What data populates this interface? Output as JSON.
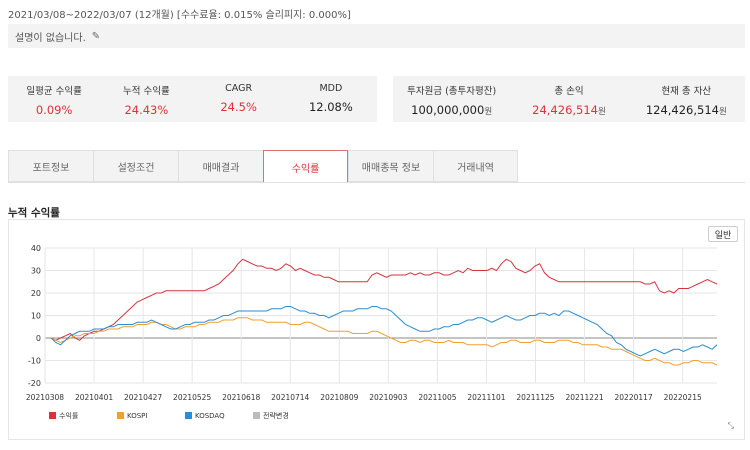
{
  "period_text": "2021/03/08~2022/03/07 (12개월) [수수료율: 0.015% 슬리피지: 0.000%]",
  "description": "설명이 없습니다.",
  "stats_left": [
    {
      "label": "일평균 수익률",
      "value": "0.09%",
      "color": "#e0303a"
    },
    {
      "label": "누적 수익률",
      "value": "24.43%",
      "color": "#e0303a"
    },
    {
      "label": "CAGR",
      "value": "24.5%",
      "color": "#e0303a"
    },
    {
      "label": "MDD",
      "value": "12.08%",
      "color": "#222222"
    }
  ],
  "stats_right": [
    {
      "label": "투자원금 (총투자평잔)",
      "value": "100,000,000",
      "unit": "원",
      "color": "#222222"
    },
    {
      "label": "총 손익",
      "value": "24,426,514",
      "unit": "원",
      "color": "#e0303a"
    },
    {
      "label": "현재 총 자산",
      "value": "124,426,514",
      "unit": "원",
      "color": "#222222"
    }
  ],
  "tabs": [
    {
      "label": "포트정보",
      "active": false
    },
    {
      "label": "설정조건",
      "active": false
    },
    {
      "label": "매매결과",
      "active": false
    },
    {
      "label": "수익률",
      "active": true
    },
    {
      "label": "매매종목 정보",
      "active": false
    },
    {
      "label": "거래내역",
      "active": false
    }
  ],
  "section_title": "누적 수익률",
  "chart_button": "일반",
  "chart_data": {
    "type": "line",
    "ylim": [
      -20,
      40
    ],
    "yticks": [
      40,
      30,
      20,
      10,
      0,
      -10,
      -20
    ],
    "x_ticks": [
      "20210308",
      "20210401",
      "20210427",
      "20210525",
      "20210618",
      "20210714",
      "20210809",
      "20210903",
      "20211005",
      "20211101",
      "20211125",
      "20211221",
      "20220117",
      "20220215"
    ],
    "legend_position": "bottom-left",
    "grid": true,
    "series": [
      {
        "name": "수익률",
        "color": "#d3343e",
        "values": [
          0,
          -1,
          0,
          1,
          2,
          0,
          -1,
          1,
          2,
          3,
          3,
          4,
          5,
          6,
          8,
          10,
          12,
          14,
          16,
          17,
          18,
          19,
          20,
          20,
          21,
          21,
          21,
          21,
          21,
          21,
          21,
          21,
          21,
          22,
          23,
          24,
          26,
          28,
          30,
          33,
          35,
          34,
          33,
          32,
          32,
          31,
          31,
          30,
          31,
          33,
          32,
          30,
          31,
          30,
          29,
          28,
          28,
          27,
          27,
          26,
          25,
          25,
          25,
          25,
          25,
          25,
          25,
          28,
          29,
          28,
          27,
          28,
          28,
          28,
          28,
          29,
          28,
          29,
          28,
          28,
          29,
          29,
          28,
          28,
          29,
          30,
          29,
          31,
          30,
          30,
          30,
          30,
          31,
          30,
          33,
          35,
          34,
          31,
          30,
          29,
          30,
          32,
          33,
          29,
          27,
          26,
          25,
          25,
          25,
          25,
          25,
          25,
          25,
          25,
          25,
          25,
          25,
          25,
          25,
          25,
          25,
          25,
          25,
          25,
          24,
          24,
          25,
          21,
          20,
          21,
          20,
          22,
          22,
          22,
          23,
          24,
          25,
          26,
          25,
          24
        ]
      },
      {
        "name": "KOSPI",
        "color": "#f0a030",
        "values": [
          0,
          -1,
          -2,
          -1,
          0,
          1,
          1,
          2,
          2,
          2,
          3,
          3,
          4,
          4,
          4,
          5,
          5,
          5,
          6,
          6,
          6,
          7,
          7,
          6,
          6,
          5,
          4,
          4,
          5,
          5,
          5,
          6,
          6,
          7,
          7,
          7,
          8,
          8,
          8,
          9,
          9,
          9,
          8,
          8,
          8,
          7,
          7,
          7,
          7,
          7,
          6,
          6,
          6,
          7,
          7,
          6,
          5,
          4,
          3,
          3,
          3,
          3,
          3,
          2,
          2,
          2,
          2,
          3,
          3,
          2,
          1,
          0,
          -1,
          -2,
          -2,
          -1,
          -1,
          -2,
          -1,
          -1,
          -2,
          -2,
          -2,
          -1,
          -2,
          -2,
          -2,
          -3,
          -3,
          -3,
          -3,
          -3,
          -4,
          -3,
          -2,
          -2,
          -1,
          -1,
          -2,
          -2,
          -2,
          -1,
          -1,
          -2,
          -2,
          -2,
          -1,
          -1,
          -1,
          -2,
          -2,
          -3,
          -3,
          -3,
          -3,
          -4,
          -4,
          -5,
          -5,
          -5,
          -6,
          -7,
          -8,
          -9,
          -10,
          -10,
          -9,
          -10,
          -11,
          -11,
          -12,
          -12,
          -11,
          -11,
          -10,
          -10,
          -11,
          -11,
          -11,
          -12
        ]
      },
      {
        "name": "KOSDAQ",
        "color": "#2b8ed0",
        "values": [
          0,
          -2,
          -3,
          -1,
          1,
          2,
          3,
          3,
          3,
          4,
          4,
          4,
          5,
          5,
          6,
          6,
          6,
          6,
          7,
          7,
          7,
          8,
          7,
          6,
          5,
          4,
          4,
          5,
          6,
          6,
          7,
          7,
          7,
          8,
          8,
          9,
          10,
          10,
          11,
          12,
          12,
          12,
          12,
          12,
          12,
          12,
          13,
          13,
          13,
          14,
          14,
          13,
          12,
          12,
          11,
          11,
          10,
          10,
          9,
          10,
          11,
          12,
          12,
          12,
          13,
          13,
          13,
          14,
          14,
          13,
          13,
          12,
          10,
          8,
          6,
          5,
          4,
          3,
          3,
          3,
          4,
          4,
          5,
          5,
          6,
          6,
          7,
          8,
          8,
          9,
          9,
          8,
          7,
          8,
          9,
          10,
          9,
          8,
          8,
          9,
          10,
          10,
          11,
          11,
          10,
          11,
          10,
          12,
          12,
          11,
          10,
          9,
          8,
          7,
          6,
          4,
          2,
          1,
          -2,
          -3,
          -5,
          -6,
          -7,
          -8,
          -7,
          -6,
          -5,
          -6,
          -7,
          -6,
          -5,
          -5,
          -6,
          -5,
          -4,
          -4,
          -3,
          -4,
          -5,
          -3
        ]
      }
    ],
    "legend": [
      {
        "name": "수익률",
        "color": "#d3343e"
      },
      {
        "name": "KOSPI",
        "color": "#f0a030"
      },
      {
        "name": "KOSDAQ",
        "color": "#2b8ed0"
      },
      {
        "name": "전략변경",
        "color": "#bbbbbb"
      }
    ]
  }
}
